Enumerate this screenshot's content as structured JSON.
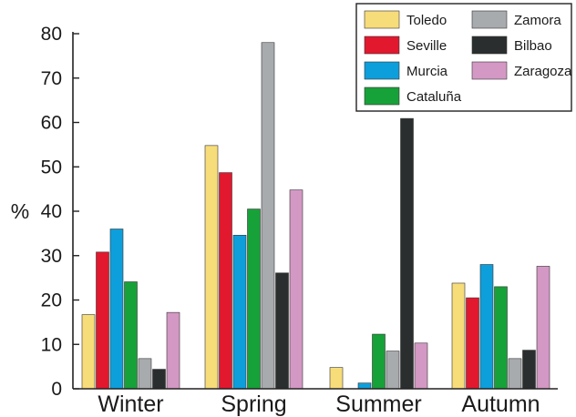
{
  "chart_data": {
    "type": "bar",
    "categories": [
      "Winter",
      "Spring",
      "Summer",
      "Autumn"
    ],
    "series": [
      {
        "name": "Toledo",
        "color": "#f7dc7a",
        "values": [
          16.7,
          54.8,
          4.8,
          23.8
        ]
      },
      {
        "name": "Seville",
        "color": "#e2182f",
        "values": [
          30.8,
          48.7,
          0,
          20.5
        ]
      },
      {
        "name": "Murcia",
        "color": "#0d9fdb",
        "values": [
          36.0,
          34.6,
          1.3,
          28.0
        ]
      },
      {
        "name": "Cataluña",
        "color": "#17a139",
        "values": [
          24.1,
          40.5,
          12.3,
          23.0
        ]
      },
      {
        "name": "Zamora",
        "color": "#a8abae",
        "values": [
          6.8,
          78.0,
          8.5,
          6.8
        ]
      },
      {
        "name": "Bilbao",
        "color": "#2b2e2e",
        "values": [
          4.4,
          26.1,
          60.9,
          8.7
        ]
      },
      {
        "name": "Zaragoza",
        "color": "#d498c5",
        "values": [
          17.2,
          44.8,
          10.3,
          27.6
        ]
      }
    ],
    "ylabel": "%",
    "xlabel": "",
    "ylim": [
      0,
      80
    ],
    "yticks": [
      "0",
      "10",
      "20",
      "30",
      "40",
      "50",
      "60",
      "70",
      "80"
    ],
    "grid": false,
    "legend_position": "top-right"
  }
}
